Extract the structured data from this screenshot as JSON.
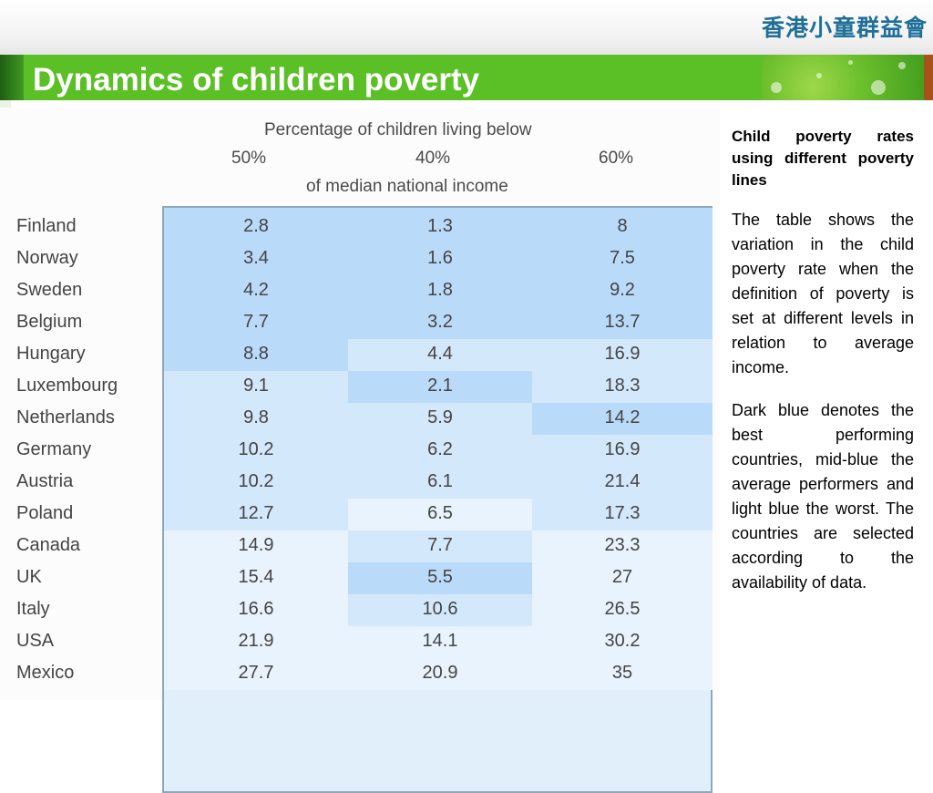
{
  "logo": {
    "text": "香港小童群益會"
  },
  "title": "Dynamics of children poverty",
  "table": {
    "header_line1": "Percentage of children living below",
    "header_line2": "of median national income",
    "columns": [
      "50%",
      "40%",
      "60%"
    ],
    "rows": [
      {
        "country": "Finland",
        "v50": "2.8",
        "v40": "1.3",
        "v60": "8"
      },
      {
        "country": "Norway",
        "v50": "3.4",
        "v40": "1.6",
        "v60": "7.5"
      },
      {
        "country": "Sweden",
        "v50": "4.2",
        "v40": "1.8",
        "v60": "9.2"
      },
      {
        "country": "Belgium",
        "v50": "7.7",
        "v40": "3.2",
        "v60": "13.7"
      },
      {
        "country": "Hungary",
        "v50": "8.8",
        "v40": "4.4",
        "v60": "16.9"
      },
      {
        "country": "Luxembourg",
        "v50": "9.1",
        "v40": "2.1",
        "v60": "18.3"
      },
      {
        "country": "Netherlands",
        "v50": "9.8",
        "v40": "5.9",
        "v60": "14.2"
      },
      {
        "country": "Germany",
        "v50": "10.2",
        "v40": "6.2",
        "v60": "16.9"
      },
      {
        "country": "Austria",
        "v50": "10.2",
        "v40": "6.1",
        "v60": "21.4"
      },
      {
        "country": "Poland",
        "v50": "12.7",
        "v40": "6.5",
        "v60": "17.3"
      },
      {
        "country": "Canada",
        "v50": "14.9",
        "v40": "7.7",
        "v60": "23.3"
      },
      {
        "country": "UK",
        "v50": "15.4",
        "v40": "5.5",
        "v60": "27"
      },
      {
        "country": "Italy",
        "v50": "16.6",
        "v40": "10.6",
        "v60": "26.5"
      },
      {
        "country": "USA",
        "v50": "21.9",
        "v40": "14.1",
        "v60": "30.2"
      },
      {
        "country": "Mexico",
        "v50": "27.7",
        "v40": "20.9",
        "v60": "35"
      }
    ],
    "colors": {
      "dark": "#b9dbf9",
      "mid": "#d3e8fb",
      "light": "#e8f3fd"
    }
  },
  "side": {
    "heading": "Child poverty rates using different poverty lines",
    "para1": "The table shows the variation in the child poverty rate when the definition of poverty is set at different levels in relation to average income.",
    "para2": "Dark blue denotes the best performing countries, mid-blue the average performers and light blue the worst. The countries are selected according to the availability of data."
  }
}
